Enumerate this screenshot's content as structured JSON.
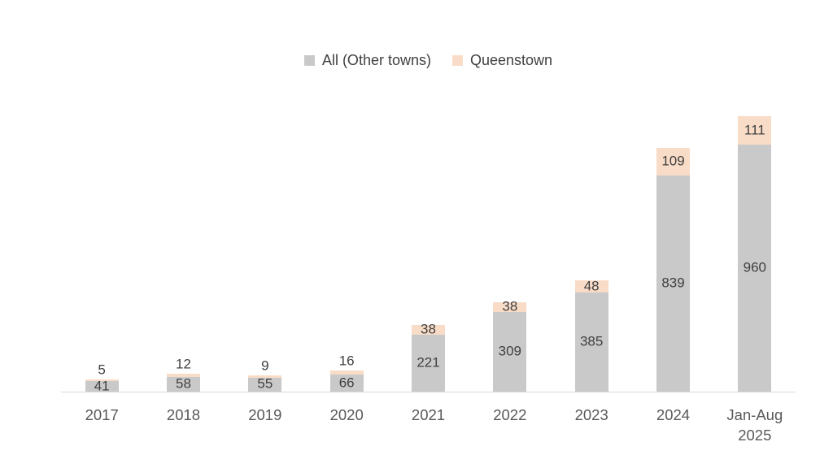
{
  "chart_data": {
    "type": "bar",
    "stacked": true,
    "title": "",
    "categories": [
      "2017",
      "2018",
      "2019",
      "2020",
      "2021",
      "2022",
      "2023",
      "2024",
      "Jan-Aug 2025"
    ],
    "series": [
      {
        "name": "All (Other towns)",
        "color": "#C9C9C9",
        "values": [
          41,
          58,
          55,
          66,
          221,
          309,
          385,
          839,
          960
        ]
      },
      {
        "name": "Queenstown",
        "color": "#F8DCC8",
        "values": [
          5,
          12,
          9,
          16,
          38,
          38,
          48,
          109,
          111
        ]
      }
    ],
    "legend_position": "top-center",
    "legend_labels": [
      "All (Other towns)",
      "Queenstown"
    ],
    "data_labels": true,
    "data_label_color": "#404040",
    "axis_tick_color": "#595959",
    "axis_line_color": "#D9D9D9",
    "background_color": "#FFFFFF",
    "y_axis_visible": false,
    "gridlines": false,
    "ylim": [
      0,
      1100
    ]
  }
}
